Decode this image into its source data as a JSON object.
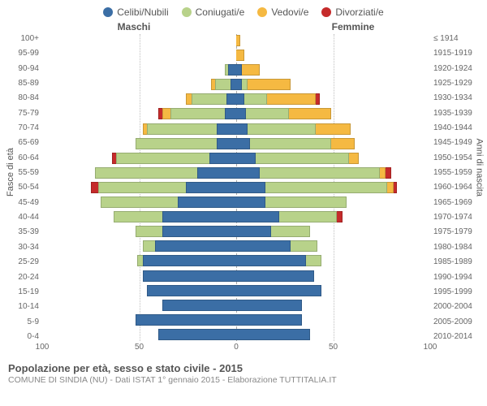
{
  "legend": [
    {
      "label": "Celibi/Nubili",
      "color": "#3b6ea5"
    },
    {
      "label": "Coniugati/e",
      "color": "#b8d28a"
    },
    {
      "label": "Vedovi/e",
      "color": "#f5b942"
    },
    {
      "label": "Divorziati/e",
      "color": "#c52b2b"
    }
  ],
  "gender": {
    "male": "Maschi",
    "female": "Femmine"
  },
  "y_left_title": "Fasce di età",
  "y_right_title": "Anni di nascita",
  "age_labels": [
    "100+",
    "95-99",
    "90-94",
    "85-89",
    "80-84",
    "75-79",
    "70-74",
    "65-69",
    "60-64",
    "55-59",
    "50-54",
    "45-49",
    "40-44",
    "35-39",
    "30-34",
    "25-29",
    "20-24",
    "15-19",
    "10-14",
    "5-9",
    "0-4"
  ],
  "year_labels": [
    "≤ 1914",
    "1915-1919",
    "1920-1924",
    "1925-1929",
    "1930-1934",
    "1935-1939",
    "1940-1944",
    "1945-1949",
    "1950-1954",
    "1955-1959",
    "1960-1964",
    "1965-1969",
    "1970-1974",
    "1975-1979",
    "1980-1984",
    "1985-1989",
    "1990-1994",
    "1995-1999",
    "2000-2004",
    "2005-2009",
    "2010-2014"
  ],
  "x_max": 100,
  "x_ticks": [
    100,
    50,
    0,
    50,
    100
  ],
  "rows": [
    {
      "m": {
        "single": 0,
        "married": 0,
        "widowed": 0,
        "divorced": 0
      },
      "f": {
        "single": 0,
        "married": 0,
        "widowed": 2,
        "divorced": 0
      }
    },
    {
      "m": {
        "single": 0,
        "married": 0,
        "widowed": 0,
        "divorced": 0
      },
      "f": {
        "single": 0,
        "married": 0,
        "widowed": 4,
        "divorced": 0
      }
    },
    {
      "m": {
        "single": 4,
        "married": 2,
        "widowed": 0,
        "divorced": 0
      },
      "f": {
        "single": 3,
        "married": 0,
        "widowed": 9,
        "divorced": 0
      }
    },
    {
      "m": {
        "single": 3,
        "married": 8,
        "widowed": 2,
        "divorced": 0
      },
      "f": {
        "single": 3,
        "married": 3,
        "widowed": 22,
        "divorced": 0
      }
    },
    {
      "m": {
        "single": 5,
        "married": 18,
        "widowed": 3,
        "divorced": 0
      },
      "f": {
        "single": 4,
        "married": 12,
        "widowed": 25,
        "divorced": 2
      }
    },
    {
      "m": {
        "single": 6,
        "married": 28,
        "widowed": 4,
        "divorced": 2
      },
      "f": {
        "single": 5,
        "married": 22,
        "widowed": 22,
        "divorced": 0
      }
    },
    {
      "m": {
        "single": 10,
        "married": 36,
        "widowed": 2,
        "divorced": 0
      },
      "f": {
        "single": 6,
        "married": 35,
        "widowed": 18,
        "divorced": 0
      }
    },
    {
      "m": {
        "single": 10,
        "married": 42,
        "widowed": 0,
        "divorced": 0
      },
      "f": {
        "single": 7,
        "married": 42,
        "widowed": 12,
        "divorced": 0
      }
    },
    {
      "m": {
        "single": 14,
        "married": 48,
        "widowed": 0,
        "divorced": 2
      },
      "f": {
        "single": 10,
        "married": 48,
        "widowed": 5,
        "divorced": 0
      }
    },
    {
      "m": {
        "single": 20,
        "married": 53,
        "widowed": 0,
        "divorced": 0
      },
      "f": {
        "single": 12,
        "married": 62,
        "widowed": 3,
        "divorced": 3
      }
    },
    {
      "m": {
        "single": 26,
        "married": 45,
        "widowed": 0,
        "divorced": 4
      },
      "f": {
        "single": 15,
        "married": 63,
        "widowed": 3,
        "divorced": 2
      }
    },
    {
      "m": {
        "single": 30,
        "married": 40,
        "widowed": 0,
        "divorced": 0
      },
      "f": {
        "single": 15,
        "married": 42,
        "widowed": 0,
        "divorced": 0
      }
    },
    {
      "m": {
        "single": 38,
        "married": 25,
        "widowed": 0,
        "divorced": 0
      },
      "f": {
        "single": 22,
        "married": 30,
        "widowed": 0,
        "divorced": 3
      }
    },
    {
      "m": {
        "single": 38,
        "married": 14,
        "widowed": 0,
        "divorced": 0
      },
      "f": {
        "single": 18,
        "married": 20,
        "widowed": 0,
        "divorced": 0
      }
    },
    {
      "m": {
        "single": 42,
        "married": 6,
        "widowed": 0,
        "divorced": 0
      },
      "f": {
        "single": 28,
        "married": 14,
        "widowed": 0,
        "divorced": 0
      }
    },
    {
      "m": {
        "single": 48,
        "married": 3,
        "widowed": 0,
        "divorced": 0
      },
      "f": {
        "single": 36,
        "married": 8,
        "widowed": 0,
        "divorced": 0
      }
    },
    {
      "m": {
        "single": 48,
        "married": 0,
        "widowed": 0,
        "divorced": 0
      },
      "f": {
        "single": 40,
        "married": 0,
        "widowed": 0,
        "divorced": 0
      }
    },
    {
      "m": {
        "single": 46,
        "married": 0,
        "widowed": 0,
        "divorced": 0
      },
      "f": {
        "single": 44,
        "married": 0,
        "widowed": 0,
        "divorced": 0
      }
    },
    {
      "m": {
        "single": 38,
        "married": 0,
        "widowed": 0,
        "divorced": 0
      },
      "f": {
        "single": 34,
        "married": 0,
        "widowed": 0,
        "divorced": 0
      }
    },
    {
      "m": {
        "single": 52,
        "married": 0,
        "widowed": 0,
        "divorced": 0
      },
      "f": {
        "single": 34,
        "married": 0,
        "widowed": 0,
        "divorced": 0
      }
    },
    {
      "m": {
        "single": 40,
        "married": 0,
        "widowed": 0,
        "divorced": 0
      },
      "f": {
        "single": 38,
        "married": 0,
        "widowed": 0,
        "divorced": 0
      }
    }
  ],
  "colors": {
    "single": "#3b6ea5",
    "married": "#b8d28a",
    "widowed": "#f5b942",
    "divorced": "#c52b2b"
  },
  "background": "#ffffff",
  "grid_color": "#bfbfbf",
  "footer": {
    "title": "Popolazione per età, sesso e stato civile - 2015",
    "sub": "COMUNE DI SINDIA (NU) - Dati ISTAT 1° gennaio 2015 - Elaborazione TUTTITALIA.IT"
  }
}
